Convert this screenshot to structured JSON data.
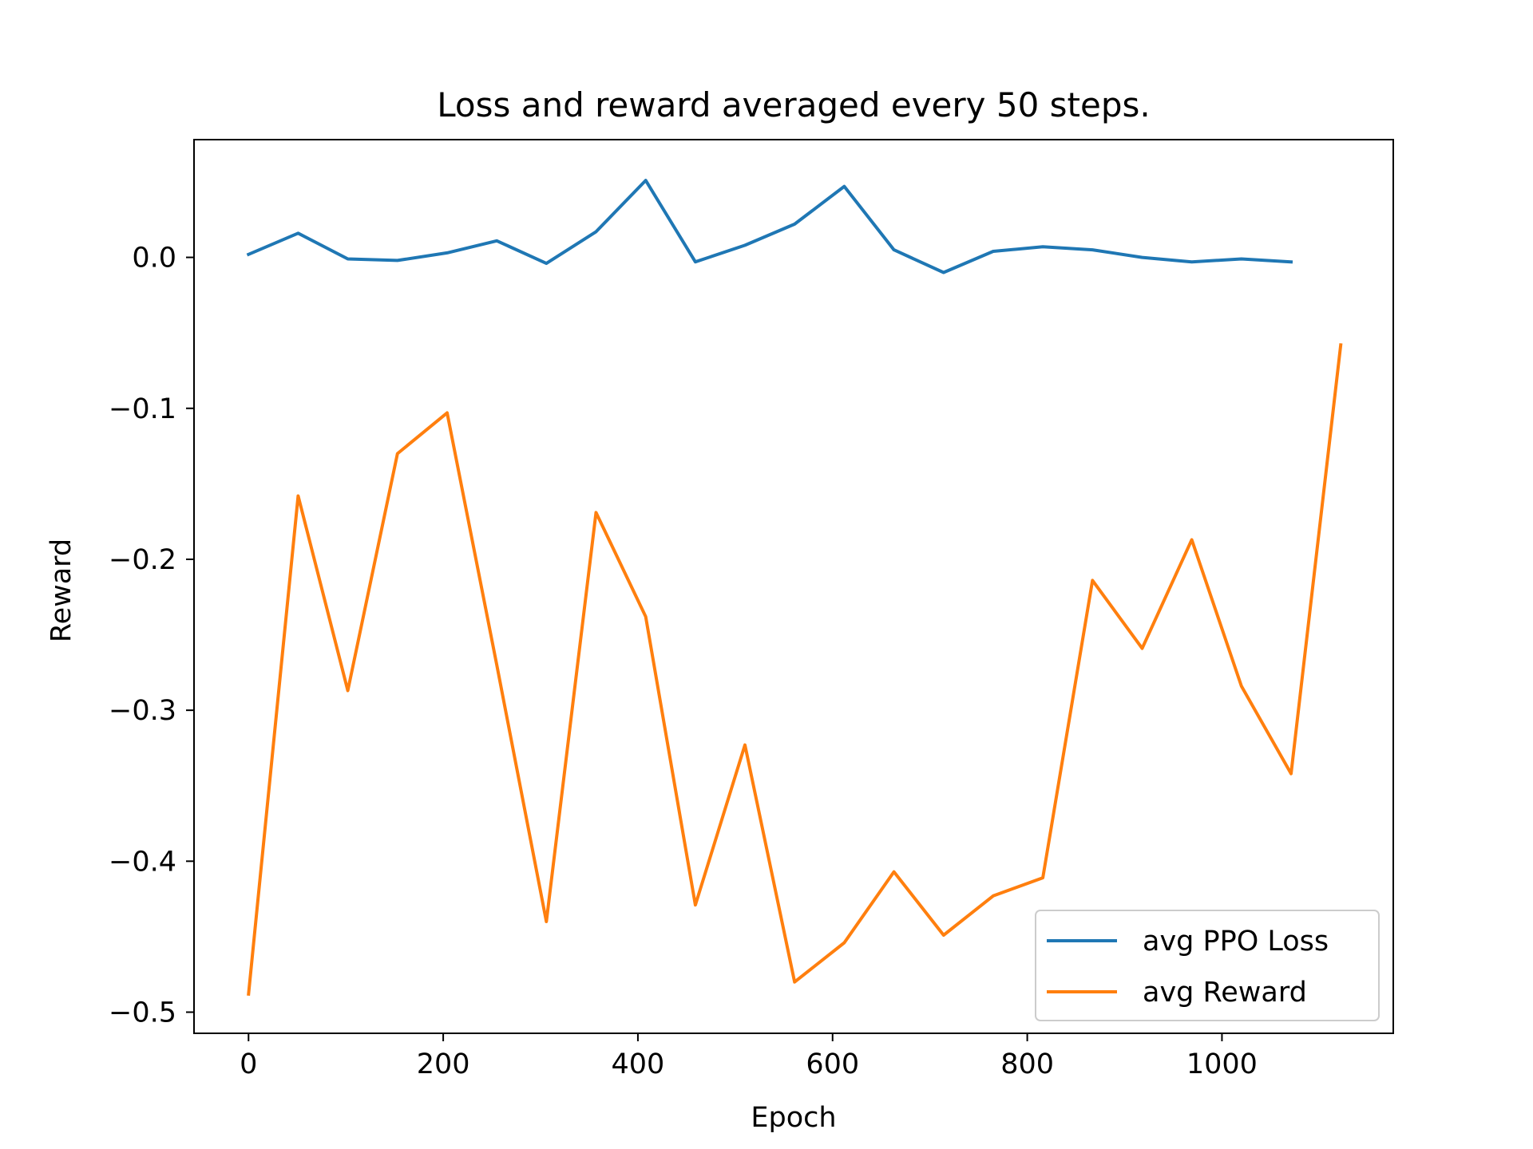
{
  "colors": {
    "loss": "#1f77b4",
    "reward": "#ff7f0e"
  },
  "chart_data": {
    "type": "line",
    "title": "Loss and reward averaged every 50 steps.",
    "xlabel": "Epoch",
    "ylabel": "Reward",
    "xlim": [
      -56,
      1176
    ],
    "ylim": [
      -0.514,
      0.078
    ],
    "xticks": [
      0,
      200,
      400,
      600,
      800,
      1000
    ],
    "yticks": [
      0.0,
      -0.1,
      -0.2,
      -0.3,
      -0.4,
      -0.5
    ],
    "xtick_labels": [
      "0",
      "200",
      "400",
      "600",
      "800",
      "1000"
    ],
    "ytick_labels": [
      "0.0",
      "−0.1",
      "−0.2",
      "−0.3",
      "−0.4",
      "−0.5"
    ],
    "legend_position": "lower-right",
    "grid": false,
    "series": [
      {
        "name": "avg PPO Loss",
        "x": [
          0,
          51,
          102,
          153,
          204,
          255,
          306,
          357,
          408,
          459,
          510,
          561,
          612,
          663,
          714,
          765,
          816,
          867,
          918,
          969,
          1020,
          1071
        ],
        "y": [
          0.002,
          0.016,
          -0.001,
          -0.002,
          0.003,
          0.011,
          -0.004,
          0.017,
          0.051,
          -0.003,
          0.008,
          0.022,
          0.047,
          0.005,
          -0.01,
          0.004,
          0.007,
          0.005,
          0.0,
          -0.003,
          -0.001,
          -0.003
        ]
      },
      {
        "name": "avg Reward",
        "x": [
          0,
          51,
          102,
          153,
          204,
          255,
          306,
          357,
          408,
          459,
          510,
          561,
          612,
          663,
          714,
          765,
          816,
          867,
          918,
          969,
          1020,
          1071,
          1122
        ],
        "y": [
          -0.488,
          -0.158,
          -0.287,
          -0.13,
          -0.103,
          -0.27,
          -0.44,
          -0.169,
          -0.238,
          -0.429,
          -0.323,
          -0.48,
          -0.454,
          -0.407,
          -0.449,
          -0.423,
          -0.411,
          -0.214,
          -0.259,
          -0.187,
          -0.284,
          -0.342,
          -0.058
        ]
      }
    ]
  }
}
